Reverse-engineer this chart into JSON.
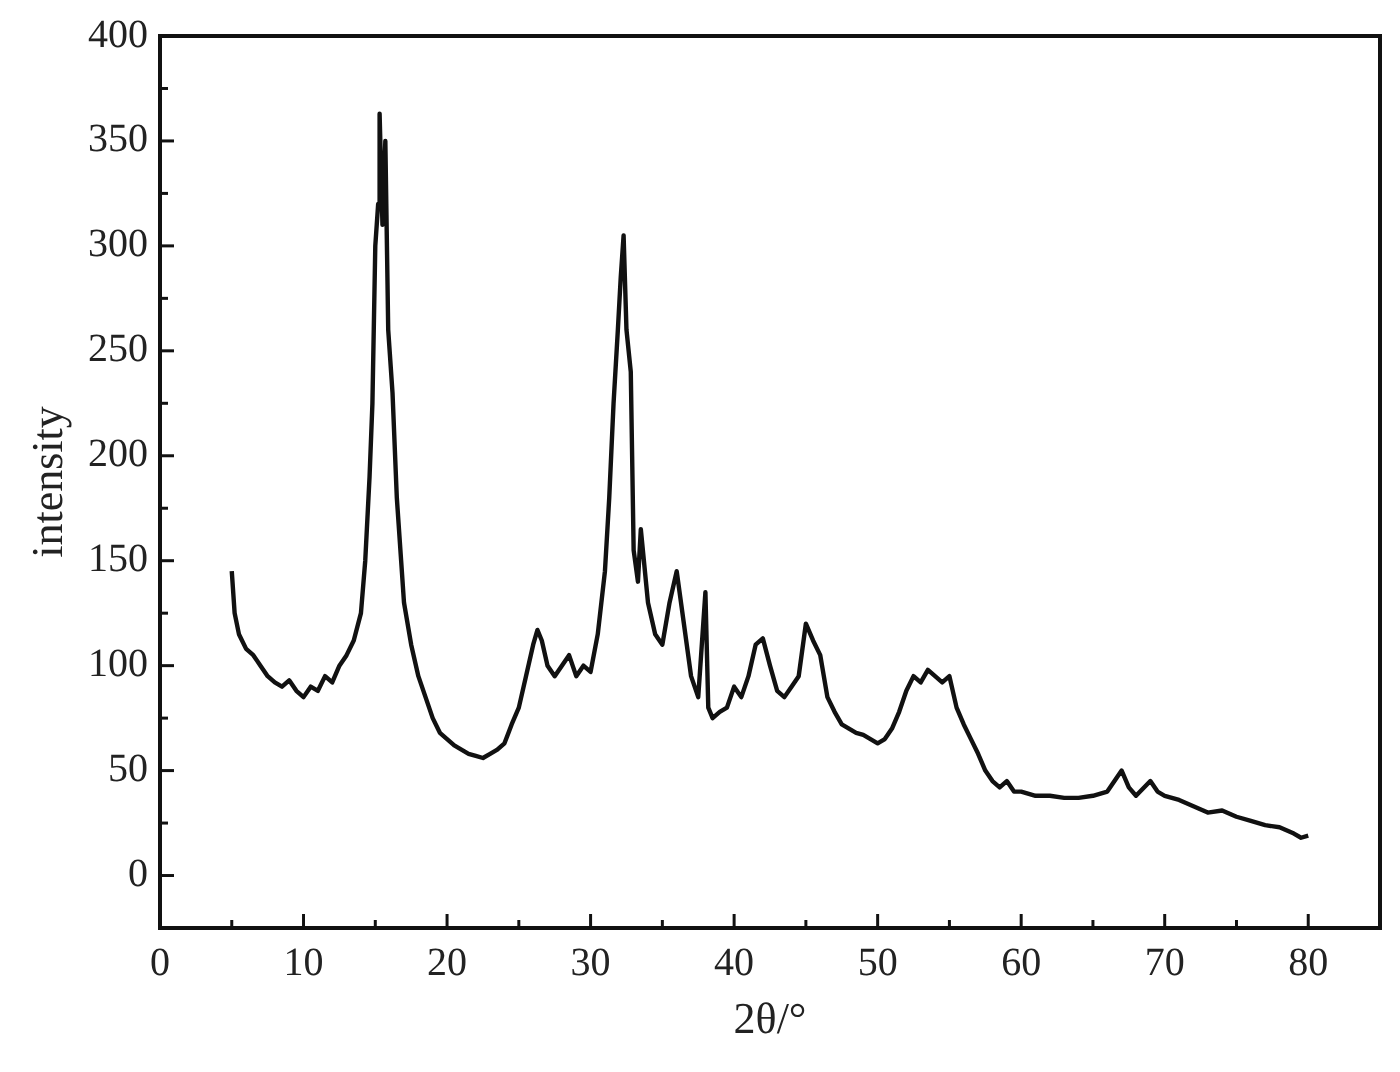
{
  "chart_data": {
    "type": "line",
    "xlabel": "2θ/°",
    "ylabel": "intensity",
    "xlim": [
      0,
      85
    ],
    "ylim": [
      -25,
      400
    ],
    "xticks": [
      0,
      {
        "value": 5,
        "label": null
      },
      10,
      {
        "value": 15,
        "label": null
      },
      20,
      {
        "value": 25,
        "label": null
      },
      30,
      {
        "value": 35,
        "label": null
      },
      40,
      {
        "value": 45,
        "label": null
      },
      50,
      {
        "value": 55,
        "label": null
      },
      60,
      {
        "value": 65,
        "label": null
      },
      70,
      {
        "value": 75,
        "label": null
      },
      80
    ],
    "yticks": [
      0,
      {
        "value": 25,
        "label": null
      },
      50,
      {
        "value": 75,
        "label": null
      },
      100,
      {
        "value": 125,
        "label": null
      },
      150,
      {
        "value": 175,
        "label": null
      },
      200,
      {
        "value": 225,
        "label": null
      },
      250,
      {
        "value": 275,
        "label": null
      },
      300,
      {
        "value": 325,
        "label": null
      },
      350,
      {
        "value": 375,
        "label": null
      },
      400
    ],
    "grid": false,
    "legend": false,
    "marker": "none",
    "line_style": "solid",
    "x": [
      5,
      5.2,
      5.5,
      6,
      6.5,
      7,
      7.5,
      8,
      8.5,
      9,
      9.5,
      10,
      10.5,
      11,
      11.5,
      12,
      12.5,
      13,
      13.5,
      14,
      14.3,
      14.6,
      14.8,
      15,
      15.2,
      15.3,
      15.5,
      15.7,
      15.9,
      16.2,
      16.5,
      16.8,
      17,
      17.5,
      18,
      18.5,
      19,
      19.5,
      20,
      20.5,
      21,
      21.5,
      22,
      22.5,
      23,
      23.5,
      24,
      24.5,
      25,
      25.5,
      26,
      26.3,
      26.6,
      27,
      27.5,
      28,
      28.5,
      29,
      29.5,
      30,
      30.5,
      31,
      31.3,
      31.6,
      31.9,
      32.1,
      32.3,
      32.5,
      32.8,
      33,
      33.3,
      33.5,
      34,
      34.5,
      35,
      35.5,
      36,
      36.5,
      37,
      37.5,
      38,
      38.2,
      38.5,
      39,
      39.5,
      40,
      40.5,
      41,
      41.5,
      42,
      42.5,
      43,
      43.5,
      44,
      44.5,
      45,
      45.5,
      46,
      46.5,
      47,
      47.5,
      48,
      48.5,
      49,
      49.5,
      50,
      50.5,
      51,
      51.5,
      52,
      52.5,
      53,
      53.5,
      54,
      54.5,
      55,
      55.5,
      56,
      56.5,
      57,
      57.5,
      58,
      58.5,
      59,
      59.5,
      60,
      61,
      62,
      63,
      64,
      65,
      66,
      67,
      67.5,
      68,
      69,
      69.5,
      70,
      71,
      72,
      73,
      74,
      75,
      76,
      77,
      78,
      79,
      79.5,
      80
    ],
    "series": [
      {
        "color": "#111111",
        "values": [
          145,
          125,
          115,
          108,
          105,
          100,
          95,
          92,
          90,
          93,
          88,
          85,
          90,
          88,
          95,
          92,
          100,
          105,
          112,
          125,
          150,
          190,
          225,
          300,
          320,
          363,
          310,
          350,
          260,
          230,
          180,
          150,
          130,
          110,
          95,
          85,
          75,
          68,
          65,
          62,
          60,
          58,
          57,
          56,
          58,
          60,
          63,
          72,
          80,
          95,
          110,
          117,
          112,
          100,
          95,
          100,
          105,
          95,
          100,
          97,
          115,
          145,
          180,
          225,
          260,
          285,
          305,
          260,
          240,
          155,
          140,
          165,
          130,
          115,
          110,
          130,
          145,
          120,
          95,
          85,
          135,
          80,
          75,
          78,
          80,
          90,
          85,
          95,
          110,
          113,
          100,
          88,
          85,
          90,
          95,
          120,
          112,
          105,
          85,
          78,
          72,
          70,
          68,
          67,
          65,
          63,
          65,
          70,
          78,
          88,
          95,
          92,
          98,
          95,
          92,
          95,
          80,
          72,
          65,
          58,
          50,
          45,
          42,
          45,
          40,
          40,
          38,
          38,
          37,
          37,
          38,
          40,
          50,
          42,
          38,
          45,
          40,
          38,
          36,
          33,
          30,
          31,
          28,
          26,
          24,
          23,
          20,
          18,
          19
        ]
      }
    ]
  }
}
